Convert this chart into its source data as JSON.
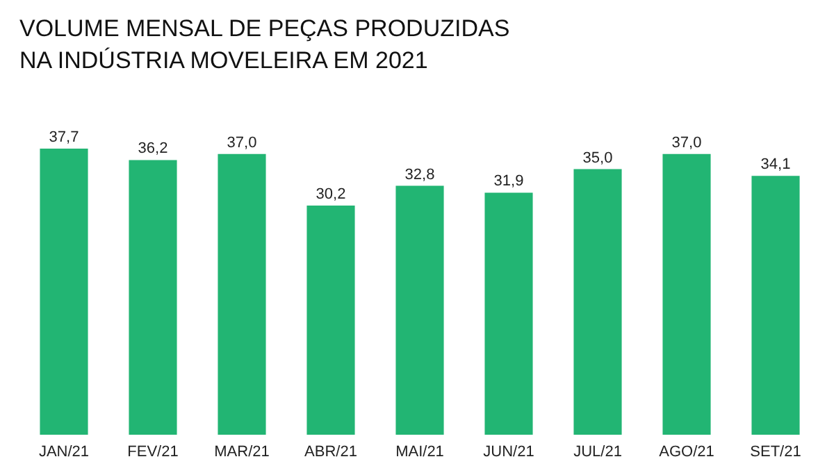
{
  "chart_data": {
    "type": "bar",
    "title": "VOLUME MENSAL DE PEÇAS PRODUZIDAS\nNA INDÚSTRIA MOVELEIRA EM 2021",
    "categories": [
      "JAN/21",
      "FEV/21",
      "MAR/21",
      "ABR/21",
      "MAI/21",
      "JUN/21",
      "JUL/21",
      "AGO/21",
      "SET/21"
    ],
    "values": [
      37.7,
      36.2,
      37.0,
      30.2,
      32.8,
      31.9,
      35.0,
      37.0,
      34.1
    ],
    "value_labels": [
      "37,7",
      "36,2",
      "37,0",
      "30,2",
      "32,8",
      "31,9",
      "35,0",
      "37,0",
      "34,1"
    ],
    "color": "#22b573",
    "grid": false
  }
}
